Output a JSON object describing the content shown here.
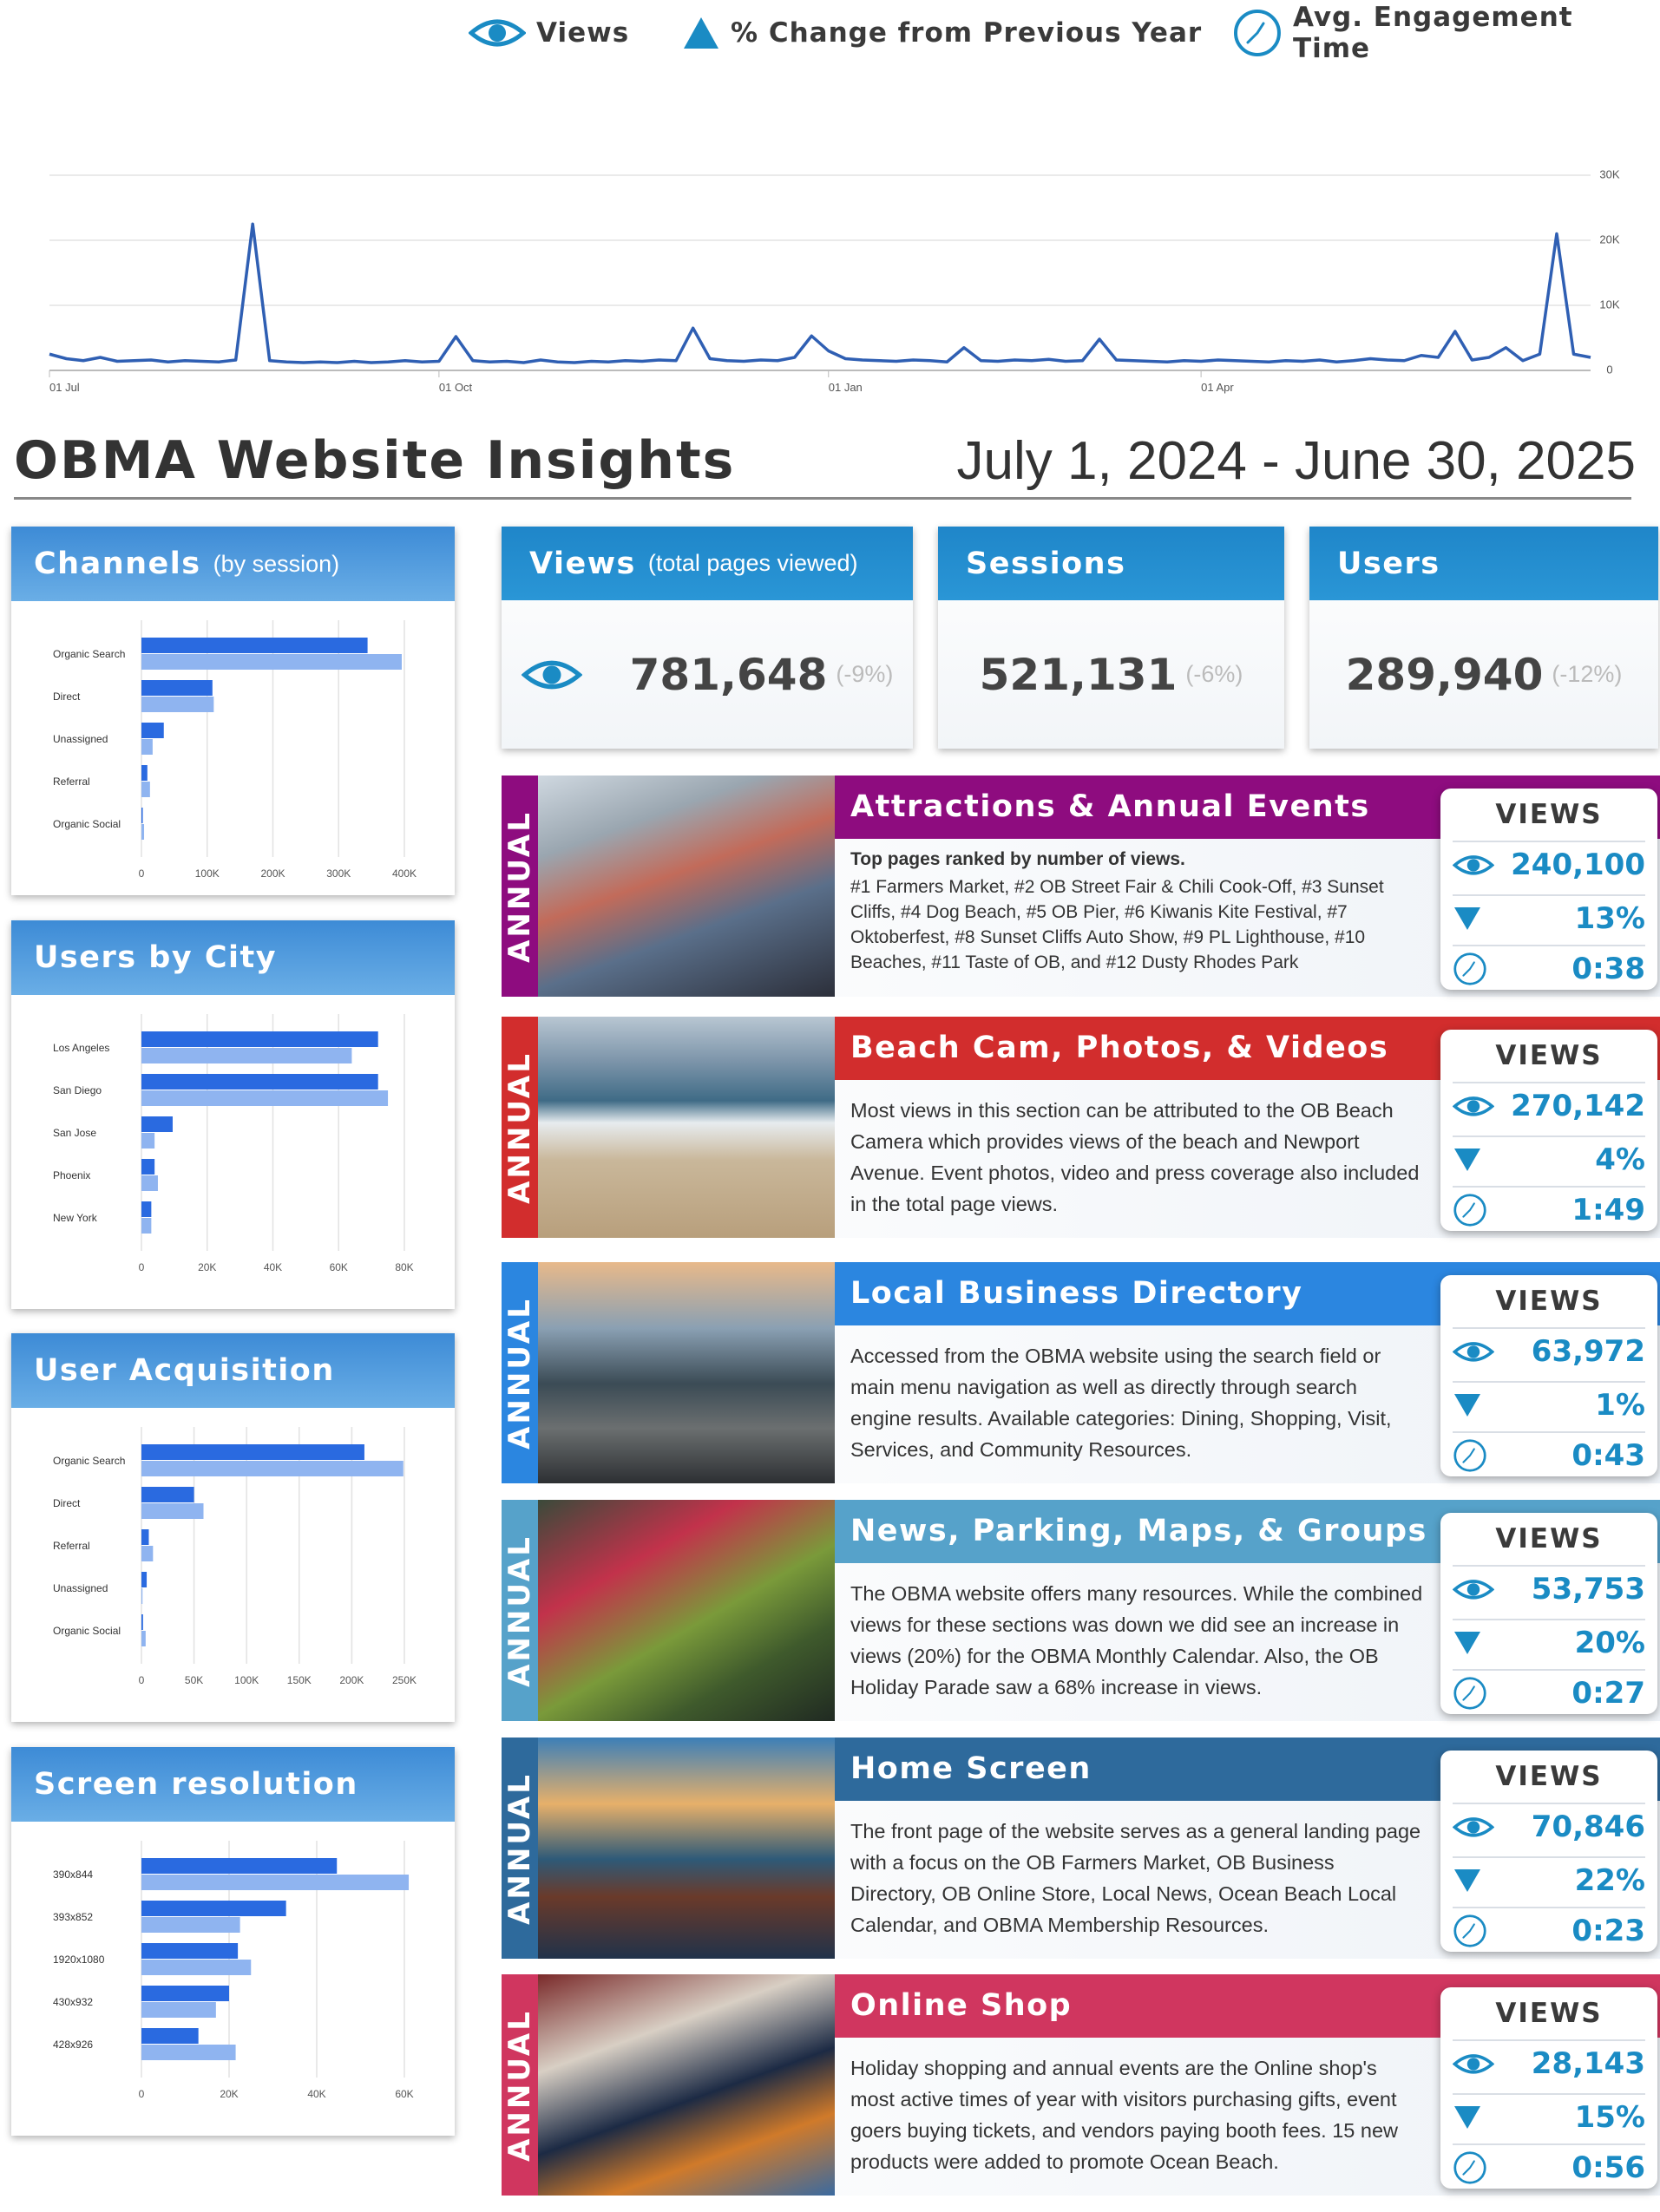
{
  "legend": {
    "views": "Views",
    "change": "% Change from Previous Year",
    "time": "Avg. Engagement Time"
  },
  "header": {
    "title": "OBMA Website Insights",
    "date_range": "July 1, 2024 - June 30, 2025"
  },
  "chart_data": [
    {
      "type": "line",
      "categories": [
        "01 Jul",
        null,
        null,
        null,
        null,
        null,
        null,
        null,
        null,
        null,
        null,
        null,
        null,
        null,
        null,
        null,
        null,
        null,
        null,
        null,
        null,
        null,
        null,
        "01 Oct",
        null,
        null,
        null,
        null,
        null,
        null,
        null,
        null,
        null,
        null,
        null,
        null,
        null,
        null,
        null,
        null,
        null,
        null,
        null,
        null,
        null,
        null,
        "01 Jan",
        null,
        null,
        null,
        null,
        null,
        null,
        null,
        null,
        null,
        null,
        null,
        null,
        null,
        null,
        null,
        null,
        null,
        null,
        null,
        null,
        null,
        "01 Apr",
        null,
        null,
        null,
        null,
        null,
        null,
        null,
        null,
        null,
        null,
        null,
        null,
        null,
        null,
        null,
        null,
        null,
        null,
        null,
        null,
        null,
        null,
        null
      ],
      "series": [
        {
          "color": "#2f5fb3",
          "values": [
            2500,
            1800,
            1500,
            2000,
            1400,
            1500,
            1600,
            1300,
            1500,
            1400,
            1300,
            1600,
            22500,
            1500,
            1300,
            1200,
            1300,
            1200,
            1400,
            1200,
            1300,
            1500,
            1300,
            1400,
            5200,
            1500,
            1300,
            1400,
            1200,
            1600,
            1300,
            1200,
            1400,
            1300,
            1500,
            1400,
            1600,
            1500,
            6500,
            1800,
            1500,
            1400,
            1600,
            1500,
            2000,
            5300,
            3000,
            1800,
            1600,
            1500,
            1400,
            1600,
            1500,
            1300,
            3500,
            1500,
            1400,
            1600,
            1500,
            1700,
            1400,
            1500,
            4800,
            1600,
            1500,
            1400,
            1300,
            1500,
            1400,
            1600,
            1500,
            1400,
            1300,
            1500,
            1400,
            1600,
            1300,
            1500,
            1800,
            1600,
            1500,
            2300,
            2000,
            6000,
            1600,
            2000,
            3500,
            1500,
            2500,
            21000,
            2500,
            2000
          ]
        }
      ],
      "ylim": [
        0,
        30000
      ],
      "yticks": [
        0,
        {
          "value": 10000,
          "label": "10K"
        },
        {
          "value": 20000,
          "label": "20K"
        },
        {
          "value": 30000,
          "label": "30K"
        }
      ],
      "grid": true
    },
    {
      "type": "bar",
      "orientation": "horizontal",
      "title": "Channels",
      "subtitle": "(by session)",
      "categories": [
        "Organic Search",
        "Direct",
        "Unassigned",
        "Referral",
        "Organic Social"
      ],
      "series": [
        {
          "color": "#2a6ae0",
          "values": [
            344000,
            108000,
            34000,
            9000,
            2000
          ]
        },
        {
          "color": "#8fb4f0",
          "values": [
            396000,
            110000,
            17000,
            13000,
            4000
          ]
        }
      ],
      "xlim": [
        0,
        400000
      ],
      "xticks": [
        0,
        {
          "value": 100000,
          "label": "100K"
        },
        {
          "value": 200000,
          "label": "200K"
        },
        {
          "value": 300000,
          "label": "300K"
        },
        {
          "value": 400000,
          "label": "400K"
        }
      ],
      "grid": true
    },
    {
      "type": "bar",
      "orientation": "horizontal",
      "title": "Users by City",
      "categories": [
        "Los Angeles",
        "San Diego",
        "San Jose",
        "Phoenix",
        "New York"
      ],
      "series": [
        {
          "color": "#2a6ae0",
          "values": [
            72000,
            72000,
            9500,
            4000,
            3000
          ]
        },
        {
          "color": "#8fb4f0",
          "values": [
            64000,
            75000,
            4000,
            5000,
            3000
          ]
        }
      ],
      "xlim": [
        0,
        80000
      ],
      "xticks": [
        0,
        {
          "value": 20000,
          "label": "20K"
        },
        {
          "value": 40000,
          "label": "40K"
        },
        {
          "value": 60000,
          "label": "60K"
        },
        {
          "value": 80000,
          "label": "80K"
        }
      ],
      "grid": true
    },
    {
      "type": "bar",
      "orientation": "horizontal",
      "title": "User Acquisition",
      "categories": [
        "Organic Search",
        "Direct",
        "Referral",
        "Unassigned",
        "Organic Social"
      ],
      "series": [
        {
          "color": "#2a6ae0",
          "values": [
            212000,
            50000,
            7000,
            5000,
            1500
          ]
        },
        {
          "color": "#8fb4f0",
          "values": [
            249000,
            59000,
            11000,
            1000,
            4000
          ]
        }
      ],
      "xlim": [
        0,
        250000
      ],
      "xticks": [
        0,
        {
          "value": 50000,
          "label": "50K"
        },
        {
          "value": 100000,
          "label": "100K"
        },
        {
          "value": 150000,
          "label": "150K"
        },
        {
          "value": 200000,
          "label": "200K"
        },
        {
          "value": 250000,
          "label": "250K"
        }
      ],
      "grid": true
    },
    {
      "type": "bar",
      "orientation": "horizontal",
      "title": "Screen resolution",
      "categories": [
        "390x844",
        "393x852",
        "1920x1080",
        "430x932",
        "428x926"
      ],
      "series": [
        {
          "color": "#2a6ae0",
          "values": [
            44600,
            33000,
            22000,
            20000,
            13000
          ]
        },
        {
          "color": "#8fb4f0",
          "values": [
            61000,
            22500,
            25000,
            17000,
            21500
          ]
        }
      ],
      "xlim": [
        0,
        60000
      ],
      "xticks": [
        0,
        {
          "value": 20000,
          "label": "20K"
        },
        {
          "value": 40000,
          "label": "40K"
        },
        {
          "value": 60000,
          "label": "60K"
        }
      ],
      "grid": true
    }
  ],
  "stats": [
    {
      "title": "Views",
      "subtitle": "(total pages viewed)",
      "value": "781,648",
      "change": "(-9%)"
    },
    {
      "title": "Sessions",
      "value": "521,131",
      "change": "(-6%)"
    },
    {
      "title": "Users",
      "value": "289,940",
      "change": "(-12%)"
    }
  ],
  "sections": [
    {
      "badge": "ANNUAL",
      "title": "Attractions & Annual Events",
      "color": "#8e0c7f",
      "lead": "Top pages ranked by number of views.",
      "body": "#1 Farmers Market, #2 OB Street Fair & Chili Cook-Off, #3 Sunset Cliffs, #4 Dog Beach, #5 OB Pier, #6 Kiwanis Kite Festival, #7 Oktoberfest, #8 Sunset Cliffs Auto Show, #9 PL Lighthouse, #10 Beaches, #11 Taste of OB, and  #12 Dusty Rhodes Park",
      "views_label": "VIEWS",
      "views": "240,100",
      "change": "13%",
      "time": "0:38"
    },
    {
      "badge": "ANNUAL",
      "title": "Beach Cam, Photos, & Videos",
      "color": "#d22d2d",
      "body": "Most views in this section can be attributed to the OB Beach Camera which provides views of the beach and Newport Avenue. Event photos, video and press coverage also included in the total page views.",
      "views_label": "VIEWS",
      "views": "270,142",
      "change": "4%",
      "time": "1:49"
    },
    {
      "badge": "ANNUAL",
      "title": "Local Business Directory",
      "color": "#2b86e0",
      "body": "Accessed from the OBMA website using the search field or main menu navigation as well as directly through search engine results. Available categories: Dining, Shopping, Visit, Services, and Community Resources.",
      "views_label": "VIEWS",
      "views": "63,972",
      "change": "1%",
      "time": "0:43"
    },
    {
      "badge": "ANNUAL",
      "title": "News, Parking, Maps, & Groups",
      "color": "#56a2ca",
      "body": "The OBMA website offers many resources. While the combined views for these sections was down we did see an increase in views (20%) for the OBMA Monthly Calendar. Also, the OB Holiday Parade saw a 68% increase in views.",
      "views_label": "VIEWS",
      "views": "53,753",
      "change": "20%",
      "time": "0:27"
    },
    {
      "badge": "ANNUAL",
      "title": "Home Screen",
      "color": "#2e6a9c",
      "body": "The front page of the website serves as a general landing page with a focus on the OB Farmers Market, OB Business Directory, OB Online Store, Local News, Ocean Beach Local Calendar, and OBMA Membership Resources.",
      "views_label": "VIEWS",
      "views": "70,846",
      "change": "22%",
      "time": "0:23"
    },
    {
      "badge": "ANNUAL",
      "title": "Online Shop",
      "color": "#d0365f",
      "body": "Holiday shopping and annual events are the Online shop's most active times of year with visitors purchasing gifts, event goers buying tickets, and vendors paying booth fees. 15 new products were added to promote Ocean Beach.",
      "views_label": "VIEWS",
      "views": "28,143",
      "change": "15%",
      "time": "0:56"
    }
  ]
}
